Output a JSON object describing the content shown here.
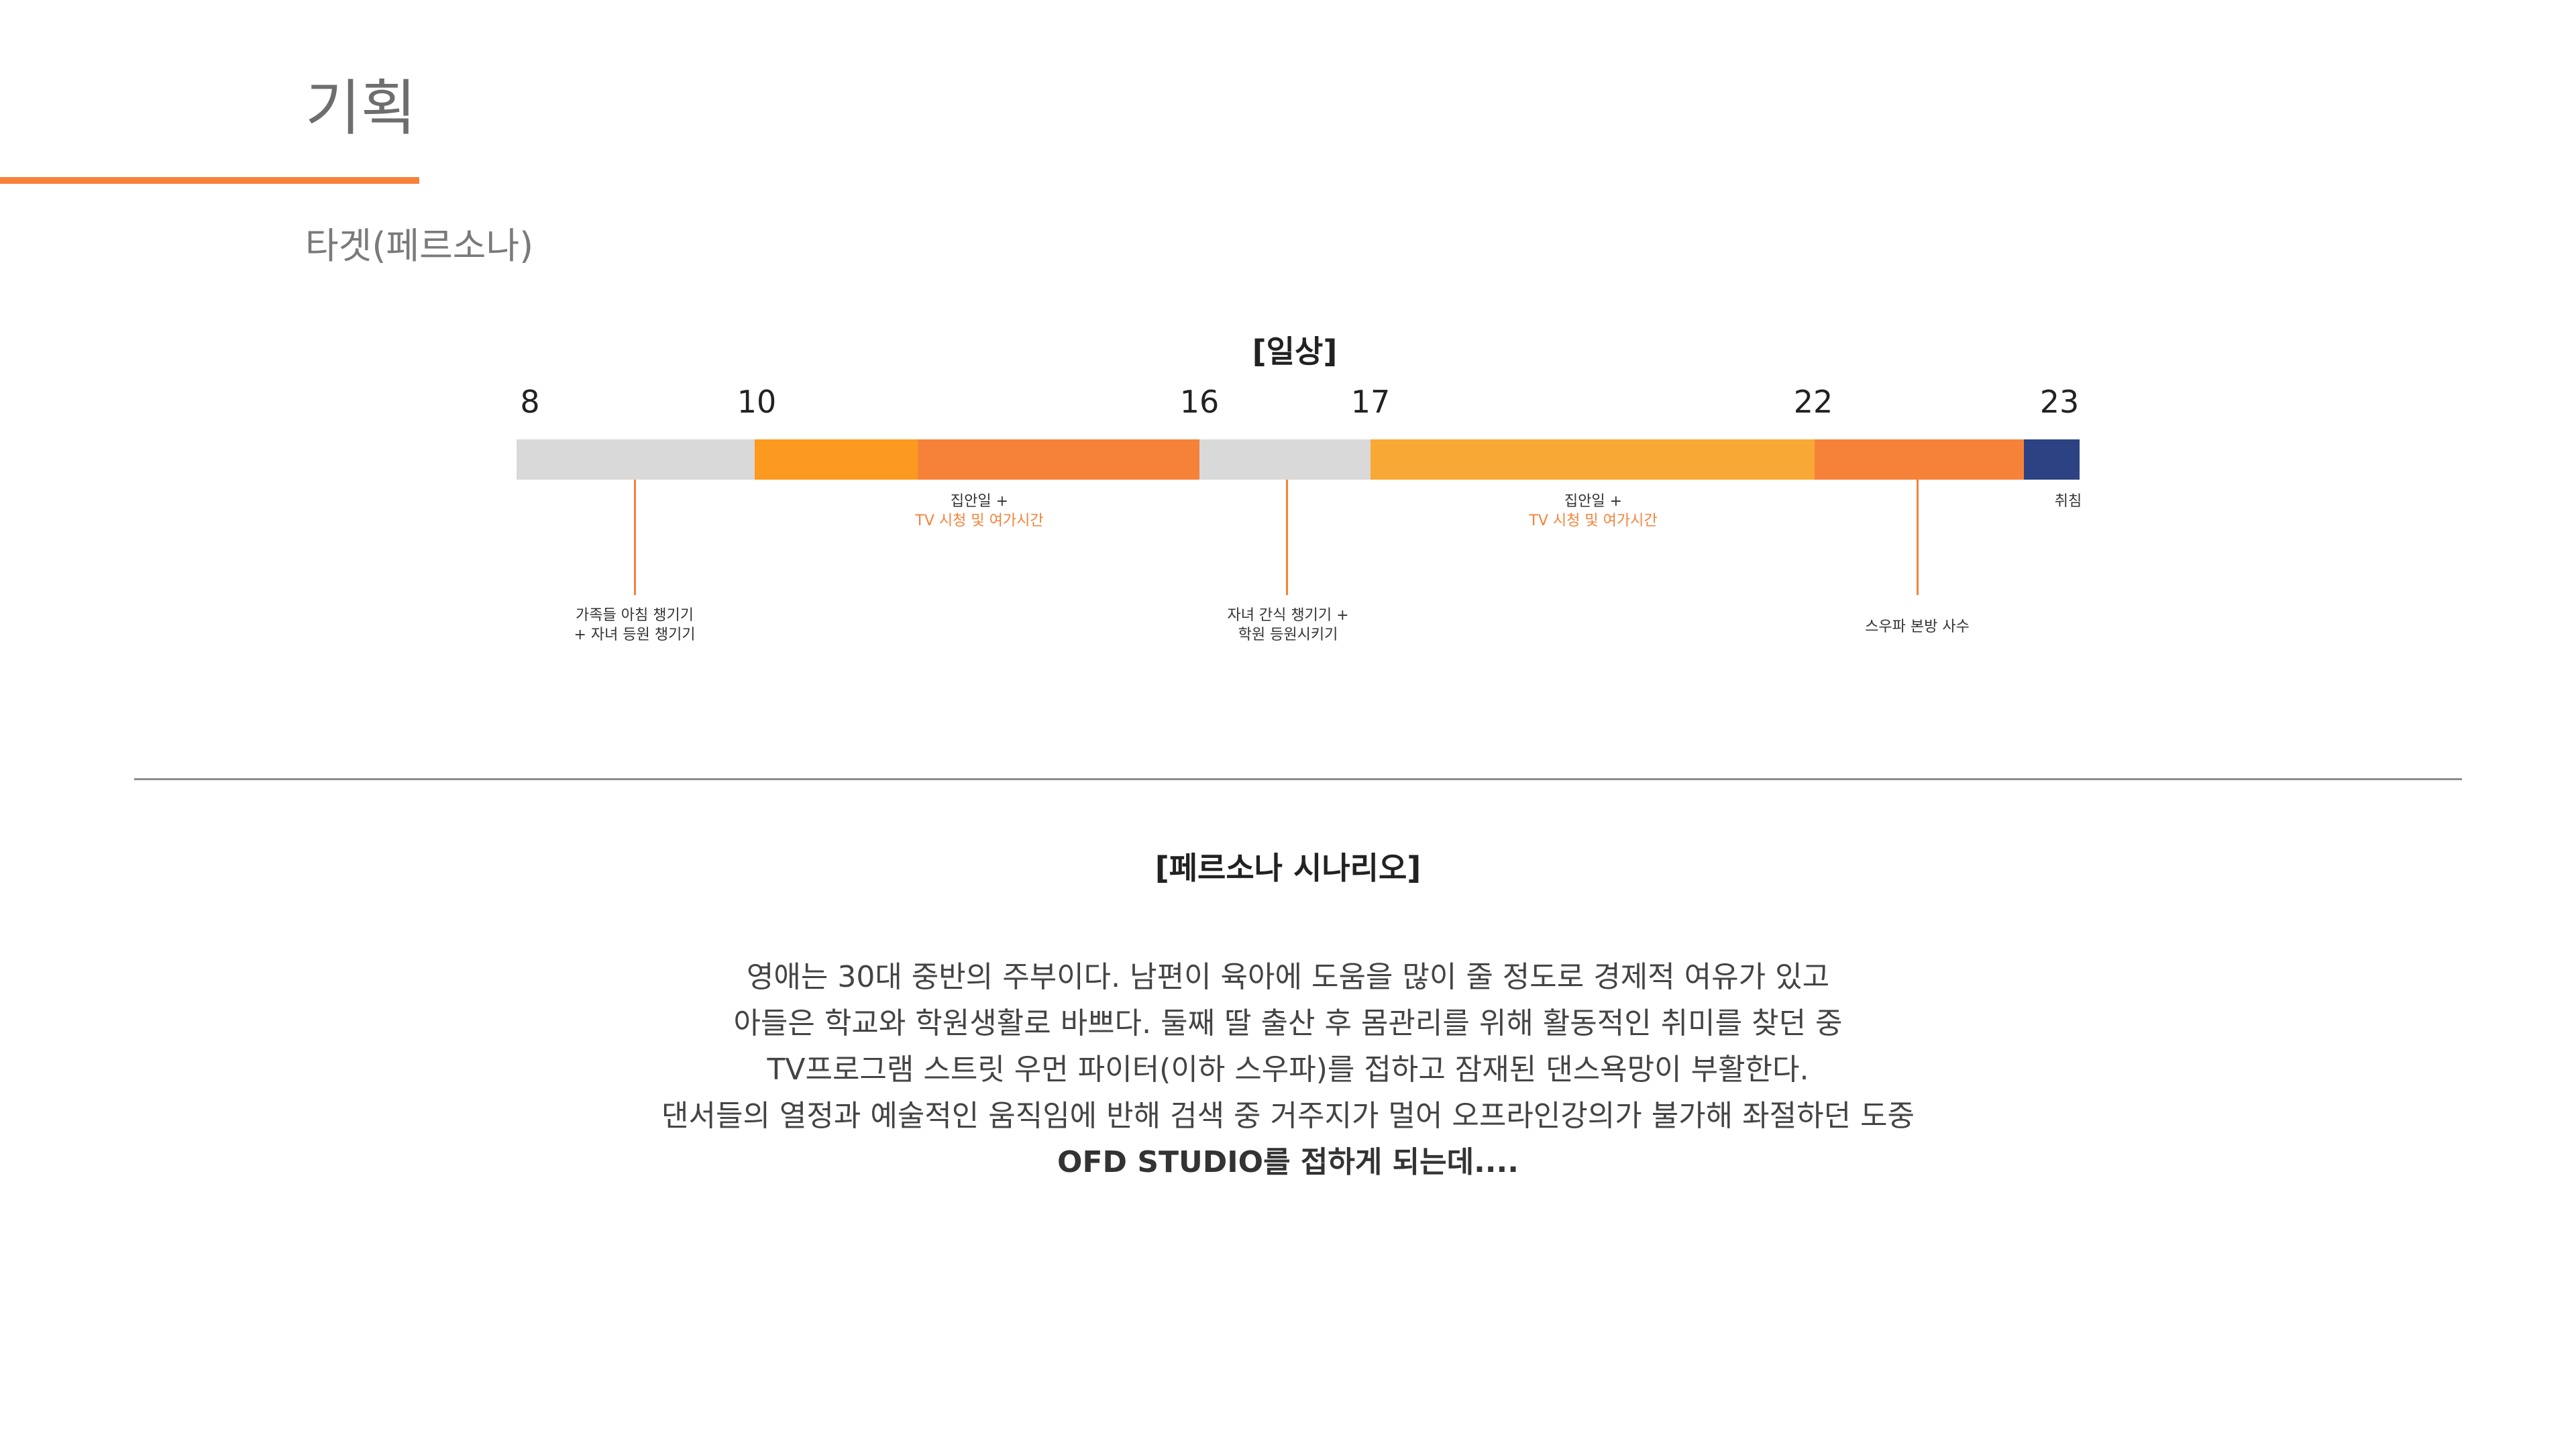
{
  "page": {
    "title": "기획",
    "subtitle": "타겟(페르소나)"
  },
  "colors": {
    "accent_line": "#f6823a",
    "gray": "#d9d9d9",
    "orange_dark": "#f6823a",
    "orange_mid": "#fb9a1e",
    "orange_light": "#f8a935",
    "navy": "#2c4282",
    "orange_text": "#f6823a"
  },
  "timeline": {
    "title": "[일상]",
    "hours": [
      "8",
      "10",
      "16",
      "17",
      "22",
      "23"
    ],
    "segments": [
      {
        "name": "gray",
        "color": "#d9d9d9"
      },
      {
        "name": "orange-mid",
        "color": "#fb9a1e"
      },
      {
        "name": "orange-dark",
        "color": "#f6823a"
      },
      {
        "name": "gray",
        "color": "#d9d9d9"
      },
      {
        "name": "orange-light",
        "color": "#f8a935"
      },
      {
        "name": "orange-dark",
        "color": "#f6823a"
      },
      {
        "name": "navy",
        "color": "#2c4282"
      }
    ],
    "labels": {
      "housework_1_line1": "집안일 +",
      "housework_1_line2": "TV 시청 및 여가시간",
      "housework_2_line1": "집안일 +",
      "housework_2_line2": "TV 시청 및 여가시간",
      "sleep": "취침",
      "morning_line1": "가족들 아침 챙기기",
      "morning_line2": "+ 자녀 등원 챙기기",
      "afternoon_line1": "자녀 간식 챙기기 +",
      "afternoon_line2": "학원 등원시키기",
      "evening": "스우파 본방 사수"
    }
  },
  "scenario": {
    "title": "[페르소나 시나리오]",
    "lines": [
      "영애는 30대 중반의 주부이다. 남편이 육아에 도움을 많이 줄 정도로 경제적 여유가 있고",
      "아들은 학교와 학원생활로 바쁘다. 둘째 딸 출산 후 몸관리를 위해 활동적인 취미를 찾던 중",
      "TV프로그램 스트릿 우먼 파이터(이하 스우파)를 접하고 잠재된 댄스욕망이 부활한다.",
      "댄서들의 열정과 예술적인 움직임에 반해 검색 중 거주지가 멀어 오프라인강의가 불가해 좌절하던 도중",
      "OFD STUDIO를 접하게 되는데...."
    ]
  }
}
